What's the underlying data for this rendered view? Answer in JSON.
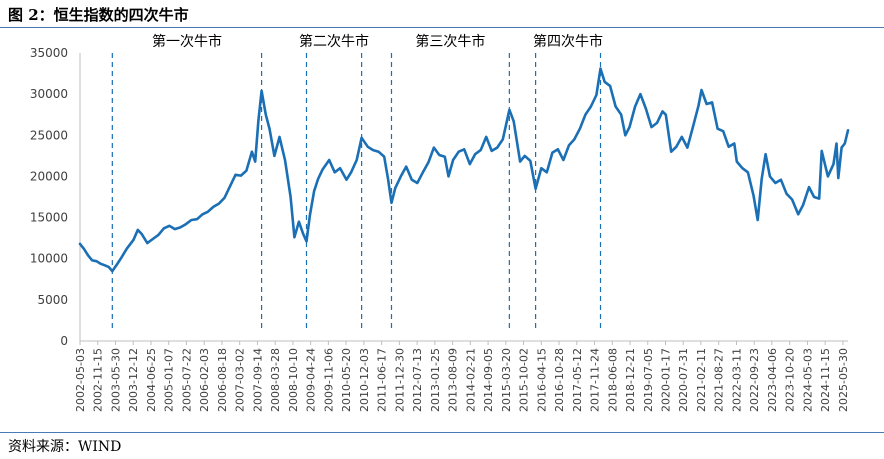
{
  "header": {
    "title": "图 2：恒生指数的四次牛市"
  },
  "footer": {
    "source": "资料来源：WIND"
  },
  "colors": {
    "line": "#1a6fb5",
    "markers": "#1a6fb5",
    "axis": "#bfbfbf",
    "rule": "#4a7ab5"
  },
  "chart_data": {
    "type": "line",
    "title": "",
    "xlabel": "",
    "ylabel": "",
    "ylim": [
      0,
      35000
    ],
    "yticks": [
      0,
      5000,
      10000,
      15000,
      20000,
      25000,
      30000,
      35000
    ],
    "grid": false,
    "legend": "none",
    "xtick_labels": [
      "2002-05-03",
      "2002-11-15",
      "2003-05-30",
      "2003-12-12",
      "2004-06-25",
      "2005-01-07",
      "2005-07-22",
      "2006-02-03",
      "2006-08-18",
      "2007-03-02",
      "2007-09-14",
      "2008-03-28",
      "2008-10-10",
      "2009-04-24",
      "2009-11-06",
      "2010-05-20",
      "2010-12-03",
      "2011-06-17",
      "2011-12-30",
      "2012-07-13",
      "2013-01-25",
      "2013-08-09",
      "2014-02-21",
      "2014-09-05",
      "2015-03-20",
      "2015-10-02",
      "2016-04-15",
      "2016-10-28",
      "2017-05-12",
      "2017-11-24",
      "2018-06-08",
      "2018-12-21",
      "2019-07-05",
      "2020-01-17",
      "2020-07-31",
      "2021-02-11",
      "2021-08-27",
      "2022-03-11",
      "2022-09-23",
      "2023-04-06",
      "2023-10-20",
      "2024-05-03",
      "2024-11-15",
      "2025-05-30"
    ],
    "bull_markets": [
      {
        "label": "第一次牛市",
        "start": "2003-04-25",
        "end": "2007-10-30"
      },
      {
        "label": "第二次牛市",
        "start": "2009-03-09",
        "end": "2010-11-08"
      },
      {
        "label": "第三次牛市",
        "start": "2011-10-04",
        "end": "2015-04-28"
      },
      {
        "label": "第四次牛市",
        "start": "2016-02-12",
        "end": "2018-01-29"
      }
    ],
    "series": [
      {
        "x": [
          "2002-05-03",
          "2002-06-15",
          "2002-08-01",
          "2002-09-15",
          "2002-11-01",
          "2002-12-15",
          "2003-02-01",
          "2003-03-15",
          "2003-04-25",
          "2003-06-15",
          "2003-08-01",
          "2003-10-01",
          "2003-12-15",
          "2004-02-01",
          "2004-03-15",
          "2004-05-15",
          "2004-07-15",
          "2004-09-15",
          "2004-11-15",
          "2005-01-15",
          "2005-03-15",
          "2005-05-15",
          "2005-07-15",
          "2005-09-15",
          "2005-11-15",
          "2006-01-15",
          "2006-03-15",
          "2006-05-15",
          "2006-07-15",
          "2006-09-15",
          "2006-11-15",
          "2007-01-15",
          "2007-03-15",
          "2007-05-15",
          "2007-07-15",
          "2007-08-20",
          "2007-09-25",
          "2007-10-30",
          "2007-12-15",
          "2008-01-25",
          "2008-03-20",
          "2008-05-15",
          "2008-07-15",
          "2008-09-15",
          "2008-10-27",
          "2008-12-15",
          "2009-02-01",
          "2009-03-09",
          "2009-04-15",
          "2009-06-01",
          "2009-07-15",
          "2009-09-01",
          "2009-11-15",
          "2010-01-15",
          "2010-03-15",
          "2010-05-25",
          "2010-07-15",
          "2010-09-15",
          "2010-11-08",
          "2011-01-15",
          "2011-03-15",
          "2011-05-15",
          "2011-07-15",
          "2011-08-25",
          "2011-10-04",
          "2011-11-15",
          "2012-01-15",
          "2012-03-15",
          "2012-05-15",
          "2012-07-15",
          "2012-09-15",
          "2012-11-15",
          "2013-01-15",
          "2013-03-15",
          "2013-05-15",
          "2013-06-25",
          "2013-08-15",
          "2013-10-15",
          "2013-12-15",
          "2014-02-15",
          "2014-04-15",
          "2014-06-15",
          "2014-08-15",
          "2014-10-15",
          "2014-12-15",
          "2015-02-15",
          "2015-04-28",
          "2015-06-15",
          "2015-08-25",
          "2015-10-15",
          "2015-12-15",
          "2016-02-12",
          "2016-04-15",
          "2016-06-15",
          "2016-08-15",
          "2016-10-15",
          "2016-12-15",
          "2017-02-15",
          "2017-04-15",
          "2017-06-15",
          "2017-08-15",
          "2017-10-15",
          "2017-12-15",
          "2018-01-29",
          "2018-03-15",
          "2018-05-15",
          "2018-07-15",
          "2018-09-15",
          "2018-10-30",
          "2018-12-15",
          "2019-02-15",
          "2019-04-15",
          "2019-06-15",
          "2019-08-15",
          "2019-10-15",
          "2019-12-15",
          "2020-01-20",
          "2020-03-20",
          "2020-05-15",
          "2020-07-15",
          "2020-09-15",
          "2020-11-15",
          "2021-01-15",
          "2021-02-18",
          "2021-04-15",
          "2021-06-15",
          "2021-08-15",
          "2021-10-15",
          "2021-12-15",
          "2022-02-15",
          "2022-03-15",
          "2022-05-15",
          "2022-07-15",
          "2022-09-15",
          "2022-10-31",
          "2022-12-15",
          "2023-01-27",
          "2023-03-15",
          "2023-05-15",
          "2023-07-15",
          "2023-09-15",
          "2023-11-15",
          "2024-01-22",
          "2024-03-15",
          "2024-05-20",
          "2024-07-15",
          "2024-09-10",
          "2024-10-07",
          "2024-12-15",
          "2025-02-15",
          "2025-03-20",
          "2025-04-09",
          "2025-05-15",
          "2025-06-20",
          "2025-07-25"
        ],
        "y": [
          11800,
          11200,
          10400,
          9800,
          9700,
          9400,
          9200,
          9000,
          8500,
          9300,
          10100,
          11200,
          12300,
          13500,
          13000,
          11900,
          12400,
          12900,
          13700,
          14000,
          13600,
          13800,
          14200,
          14700,
          14800,
          15400,
          15700,
          16300,
          16700,
          17400,
          18800,
          20200,
          20100,
          20700,
          23000,
          21800,
          26800,
          30400,
          27500,
          25800,
          22500,
          24800,
          22000,
          17500,
          12600,
          14500,
          13000,
          12100,
          15200,
          18200,
          19700,
          20800,
          22000,
          20500,
          21000,
          19600,
          20500,
          22000,
          24700,
          23600,
          23200,
          23000,
          22400,
          19800,
          16800,
          18600,
          20000,
          21200,
          19600,
          19200,
          20500,
          21700,
          23500,
          22600,
          22400,
          20000,
          22000,
          23000,
          23300,
          21500,
          22700,
          23200,
          24800,
          23100,
          23500,
          24500,
          28100,
          26700,
          21800,
          22500,
          21900,
          18500,
          21000,
          20500,
          22900,
          23300,
          22000,
          23800,
          24500,
          25800,
          27500,
          28500,
          29900,
          33100,
          31500,
          31000,
          28500,
          27500,
          25000,
          26000,
          28500,
          30000,
          28200,
          26000,
          26500,
          27900,
          27500,
          23000,
          23600,
          24800,
          23500,
          26000,
          28600,
          30500,
          28800,
          29000,
          25800,
          25500,
          23600,
          24000,
          21800,
          21000,
          20500,
          17700,
          14700,
          19700,
          22700,
          20000,
          19200,
          19600,
          17900,
          17200,
          15400,
          16500,
          18700,
          17500,
          17300,
          23100,
          20000,
          21500,
          24000,
          19800,
          23500,
          24000,
          25600
        ]
      }
    ]
  }
}
